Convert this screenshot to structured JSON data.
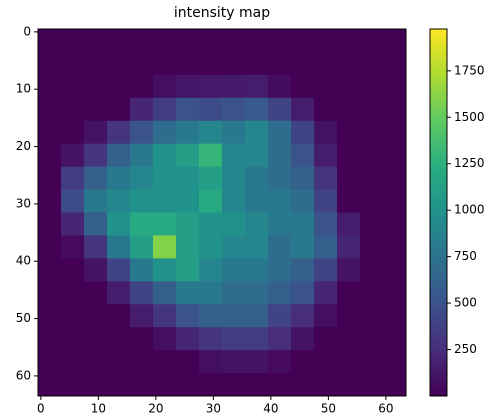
{
  "chart_data": {
    "type": "heatmap",
    "title": "intensity map",
    "colormap": "viridis",
    "xlim": [
      -0.5,
      63.5
    ],
    "ylim": [
      63.5,
      -0.5
    ],
    "xticks": [
      0,
      10,
      20,
      30,
      40,
      50,
      60
    ],
    "yticks": [
      0,
      10,
      20,
      30,
      40,
      50,
      60
    ],
    "clim": [
      0,
      1975
    ],
    "cticks": [
      250,
      500,
      750,
      1000,
      1250,
      1500,
      1750
    ],
    "values": [
      [
        0,
        0,
        0,
        0,
        0,
        0,
        0,
        0,
        0,
        0,
        0,
        0,
        0,
        0,
        0,
        0
      ],
      [
        0,
        0,
        0,
        0,
        0,
        0,
        0,
        0,
        0,
        0,
        0,
        0,
        0,
        0,
        0,
        0
      ],
      [
        0,
        0,
        0,
        0,
        0,
        80,
        120,
        130,
        140,
        150,
        60,
        0,
        0,
        0,
        0,
        0
      ],
      [
        0,
        0,
        0,
        0,
        200,
        350,
        500,
        450,
        500,
        550,
        400,
        150,
        0,
        0,
        0,
        0
      ],
      [
        0,
        0,
        100,
        300,
        500,
        700,
        800,
        900,
        800,
        900,
        700,
        400,
        100,
        0,
        0,
        0
      ],
      [
        0,
        100,
        300,
        600,
        800,
        1000,
        1100,
        1300,
        900,
        900,
        700,
        500,
        150,
        0,
        0,
        0
      ],
      [
        0,
        350,
        600,
        800,
        900,
        1000,
        1000,
        1100,
        900,
        800,
        700,
        600,
        300,
        0,
        0,
        0
      ],
      [
        0,
        450,
        800,
        900,
        1000,
        1000,
        1000,
        1200,
        900,
        800,
        800,
        700,
        400,
        0,
        0,
        0
      ],
      [
        0,
        200,
        600,
        1000,
        1200,
        1200,
        1100,
        1000,
        1000,
        900,
        800,
        800,
        500,
        150,
        0,
        0
      ],
      [
        0,
        50,
        300,
        800,
        1100,
        1600,
        1100,
        1000,
        900,
        900,
        700,
        800,
        600,
        200,
        0,
        0
      ],
      [
        0,
        0,
        100,
        400,
        800,
        1000,
        1100,
        900,
        800,
        800,
        700,
        600,
        400,
        100,
        0,
        0
      ],
      [
        0,
        0,
        0,
        150,
        400,
        600,
        800,
        800,
        700,
        700,
        600,
        500,
        200,
        0,
        0,
        0
      ],
      [
        0,
        0,
        0,
        0,
        150,
        300,
        500,
        600,
        600,
        600,
        400,
        250,
        80,
        0,
        0,
        0
      ],
      [
        0,
        0,
        0,
        0,
        0,
        80,
        200,
        300,
        350,
        350,
        250,
        100,
        0,
        0,
        0,
        0
      ],
      [
        0,
        0,
        0,
        0,
        0,
        0,
        0,
        80,
        100,
        100,
        50,
        0,
        0,
        0,
        0,
        0
      ],
      [
        0,
        0,
        0,
        0,
        0,
        0,
        0,
        0,
        0,
        0,
        0,
        0,
        0,
        0,
        0,
        0
      ]
    ]
  }
}
